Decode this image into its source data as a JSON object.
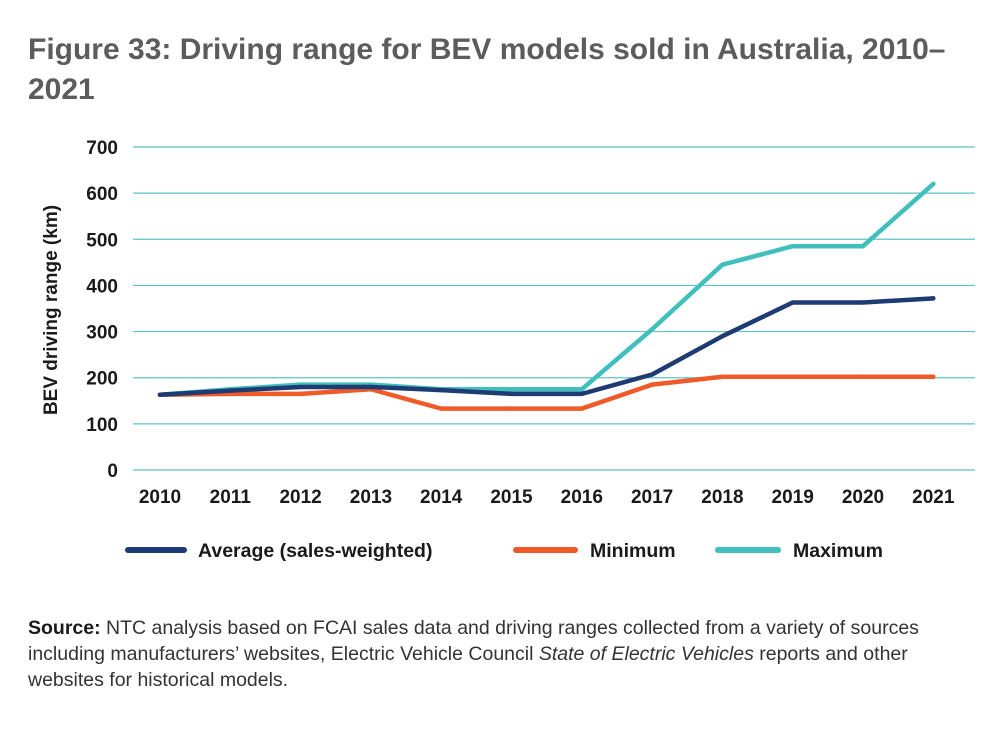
{
  "figure": {
    "title": "Figure 33: Driving range for BEV models sold in Australia, 2010–2021"
  },
  "chart_data": {
    "type": "line",
    "title": "Figure 33: Driving range for BEV models sold in Australia, 2010–2021",
    "xlabel": "",
    "ylabel": "BEV driving range (km)",
    "categories": [
      "2010",
      "2011",
      "2012",
      "2013",
      "2014",
      "2015",
      "2016",
      "2017",
      "2018",
      "2019",
      "2020",
      "2021"
    ],
    "ylim": [
      0,
      700
    ],
    "yticks": [
      0,
      100,
      200,
      300,
      400,
      500,
      600,
      700
    ],
    "grid": true,
    "legend_position": "bottom",
    "series": [
      {
        "name": "Average (sales-weighted)",
        "color": "#1f3b73",
        "values": [
          163,
          172,
          180,
          180,
          173,
          165,
          165,
          207,
          290,
          363,
          363,
          372
        ]
      },
      {
        "name": "Minimum",
        "color": "#f05a28",
        "values": [
          163,
          165,
          165,
          175,
          133,
          133,
          133,
          185,
          202,
          202,
          202,
          202
        ]
      },
      {
        "name": "Maximum",
        "color": "#40bfbd",
        "values": [
          163,
          175,
          185,
          185,
          175,
          175,
          175,
          305,
          445,
          485,
          485,
          620
        ]
      }
    ]
  },
  "source": {
    "label": "Source:",
    "text_before_italic": " NTC analysis based on FCAI sales data and driving ranges collected from a variety of sources including manufacturers’ websites, Electric Vehicle Council ",
    "italic": "State of Electric Vehicles",
    "text_after_italic": " reports and other websites for historical models."
  },
  "colors": {
    "gridline": "#5bc4c8",
    "axis_text": "#1a1a1a",
    "title_text": "#5c5c5c"
  }
}
